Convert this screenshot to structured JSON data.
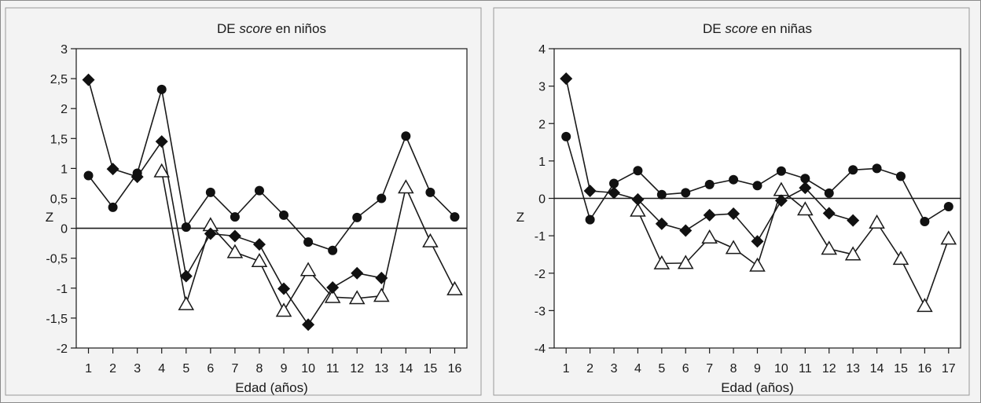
{
  "chart_data": [
    {
      "type": "line",
      "title_parts": [
        "DE ",
        "score",
        " en niños"
      ],
      "xlabel": "Edad (años)",
      "ylabel": "Z",
      "x": [
        1,
        2,
        3,
        4,
        5,
        6,
        7,
        8,
        9,
        10,
        11,
        12,
        13,
        14,
        15,
        16
      ],
      "x_tick_labels": [
        "1",
        "2",
        "3",
        "4",
        "5",
        "6",
        "7",
        "8",
        "9",
        "10",
        "11",
        "12",
        "13",
        "14",
        "15",
        "16"
      ],
      "y_tick_labels": [
        "3",
        "2,5",
        "2",
        "1,5",
        "1",
        "0,5",
        "0",
        "-0,5",
        "-1",
        "-1,5",
        "-2"
      ],
      "y_ticks": [
        3,
        2.5,
        2,
        1.5,
        1,
        0.5,
        0,
        -0.5,
        -1,
        -1.5,
        -2
      ],
      "ylim": [
        -2,
        3
      ],
      "xlim": [
        0.5,
        16.5
      ],
      "reference_line": 0,
      "series": [
        {
          "marker": "circle",
          "values": [
            0.88,
            0.35,
            0.92,
            2.32,
            0.02,
            0.6,
            0.19,
            0.63,
            0.22,
            -0.23,
            -0.37,
            0.18,
            0.5,
            1.54,
            0.6,
            0.19
          ]
        },
        {
          "marker": "diamond",
          "values": [
            2.48,
            0.99,
            0.86,
            1.45,
            -0.8,
            -0.09,
            -0.13,
            -0.27,
            -1.01,
            -1.61,
            -0.99,
            -0.75,
            -0.83,
            null,
            null,
            null
          ]
        },
        {
          "marker": "triangle",
          "values": [
            null,
            null,
            null,
            0.95,
            -1.27,
            0.05,
            -0.4,
            -0.55,
            -1.38,
            -0.7,
            -1.15,
            -1.17,
            -1.13,
            0.68,
            -0.22,
            -1.02
          ]
        }
      ]
    },
    {
      "type": "line",
      "title_parts": [
        "DE ",
        "score",
        " en niñas"
      ],
      "xlabel": "Edad (años)",
      "ylabel": "Z",
      "x": [
        1,
        2,
        3,
        4,
        5,
        6,
        7,
        8,
        9,
        10,
        11,
        12,
        13,
        14,
        15,
        16,
        17
      ],
      "x_tick_labels": [
        "1",
        "2",
        "3",
        "4",
        "5",
        "6",
        "7",
        "8",
        "9",
        "10",
        "11",
        "12",
        "13",
        "14",
        "15",
        "16",
        "17"
      ],
      "y_tick_labels": [
        "4",
        "3",
        "2",
        "1",
        "0",
        "-1",
        "-2",
        "-3",
        "-4"
      ],
      "y_ticks": [
        4,
        3,
        2,
        1,
        0,
        -1,
        -2,
        -3,
        -4
      ],
      "ylim": [
        -4,
        4
      ],
      "xlim": [
        0.5,
        17.5
      ],
      "reference_line": 0,
      "series": [
        {
          "marker": "circle",
          "values": [
            1.65,
            -0.57,
            0.4,
            0.74,
            0.1,
            0.15,
            0.37,
            0.5,
            0.34,
            0.73,
            0.53,
            0.14,
            0.76,
            0.8,
            0.59,
            -0.62,
            -0.22
          ]
        },
        {
          "marker": "diamond",
          "values": [
            3.2,
            0.2,
            0.15,
            -0.03,
            -0.68,
            -0.86,
            -0.45,
            -0.41,
            -1.15,
            -0.06,
            0.28,
            -0.4,
            -0.59,
            null,
            null,
            null,
            null
          ]
        },
        {
          "marker": "triangle",
          "values": [
            null,
            null,
            null,
            -0.33,
            -1.74,
            -1.73,
            -1.05,
            -1.33,
            -1.8,
            0.22,
            -0.3,
            -1.35,
            -1.5,
            -0.65,
            -1.62,
            -2.88,
            -1.08
          ]
        }
      ]
    }
  ]
}
